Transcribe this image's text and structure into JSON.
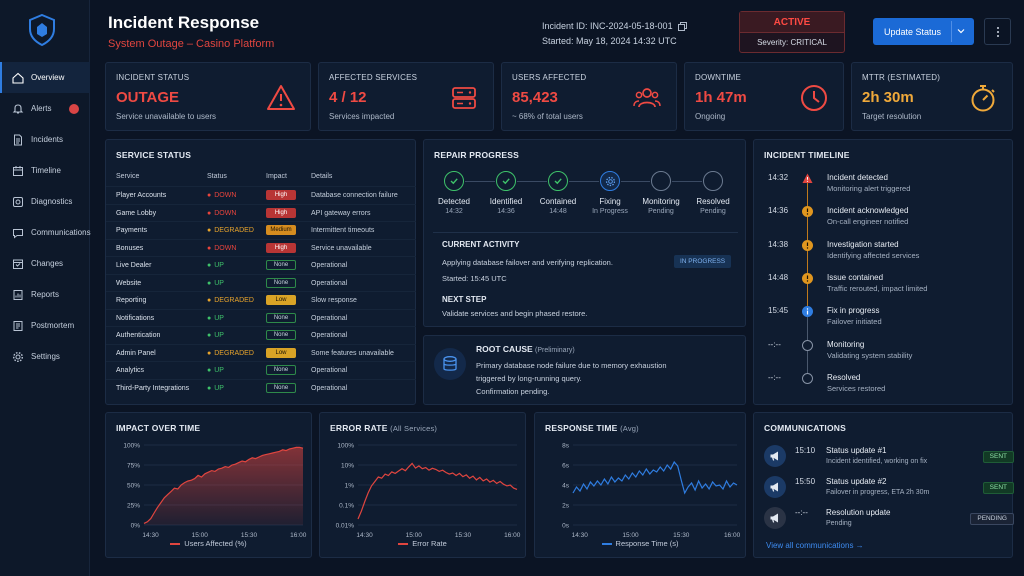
{
  "header": {
    "title": "Incident Response",
    "subtitle": "System Outage – Casino Platform",
    "incident_id": "Incident ID: INC-2024-05-18-001",
    "started": "Started: May 18, 2024  14:32 UTC",
    "status": "ACTIVE",
    "severity": "Severity: CRITICAL",
    "update_button": "Update Status"
  },
  "sidebar": {
    "items": [
      {
        "label": "Overview",
        "icon": "home-icon"
      },
      {
        "label": "Alerts",
        "icon": "bell-icon"
      },
      {
        "label": "Incidents",
        "icon": "document-icon"
      },
      {
        "label": "Timeline",
        "icon": "calendar-icon"
      },
      {
        "label": "Diagnostics",
        "icon": "diagnostics-icon"
      },
      {
        "label": "Communications",
        "icon": "chat-icon"
      },
      {
        "label": "Changes",
        "icon": "changes-icon"
      },
      {
        "label": "Reports",
        "icon": "report-icon"
      },
      {
        "label": "Postmortem",
        "icon": "postmortem-icon"
      },
      {
        "label": "Settings",
        "icon": "gear-icon"
      }
    ]
  },
  "kpis": [
    {
      "label": "INCIDENT STATUS",
      "value": "OUTAGE",
      "sub": "Service unavailable to users",
      "color": "#ef4a43",
      "icon": "warning-icon"
    },
    {
      "label": "AFFECTED SERVICES",
      "value": "4 / 12",
      "sub": "Services impacted",
      "color": "#ef4a43",
      "icon": "server-icon"
    },
    {
      "label": "USERS AFFECTED",
      "value": "85,423",
      "sub": "~ 68% of total users",
      "color": "#ef4a43",
      "icon": "users-icon"
    },
    {
      "label": "DOWNTIME",
      "value": "1h 47m",
      "sub": "Ongoing",
      "color": "#ef4a43",
      "icon": "clock-icon"
    },
    {
      "label": "MTTR (ESTIMATED)",
      "value": "2h 30m",
      "sub": "Target resolution",
      "color": "#f0a93a",
      "icon": "stopwatch-icon"
    }
  ],
  "service_status": {
    "title": "SERVICE STATUS",
    "columns": [
      "Service",
      "Status",
      "Impact",
      "Details"
    ],
    "rows": [
      {
        "service": "Player Accounts",
        "status": "DOWN",
        "impact": "High",
        "details": "Database connection failure"
      },
      {
        "service": "Game Lobby",
        "status": "DOWN",
        "impact": "High",
        "details": "API gateway errors"
      },
      {
        "service": "Payments",
        "status": "DEGRADED",
        "impact": "Medium",
        "details": "Intermittent timeouts"
      },
      {
        "service": "Bonuses",
        "status": "DOWN",
        "impact": "High",
        "details": "Service unavailable"
      },
      {
        "service": "Live Dealer",
        "status": "UP",
        "impact": "None",
        "details": "Operational"
      },
      {
        "service": "Website",
        "status": "UP",
        "impact": "None",
        "details": "Operational"
      },
      {
        "service": "Reporting",
        "status": "DEGRADED",
        "impact": "Low",
        "details": "Slow response"
      },
      {
        "service": "Notifications",
        "status": "UP",
        "impact": "None",
        "details": "Operational"
      },
      {
        "service": "Authentication",
        "status": "UP",
        "impact": "None",
        "details": "Operational"
      },
      {
        "service": "Admin Panel",
        "status": "DEGRADED",
        "impact": "Low",
        "details": "Some features unavailable"
      },
      {
        "service": "Analytics",
        "status": "UP",
        "impact": "None",
        "details": "Operational"
      },
      {
        "service": "Third-Party Integrations",
        "status": "UP",
        "impact": "None",
        "details": "Operational"
      }
    ]
  },
  "repair": {
    "title": "REPAIR PROGRESS",
    "steps": [
      {
        "name": "Detected",
        "time": "14:32",
        "state": "done"
      },
      {
        "name": "Identified",
        "time": "14:36",
        "state": "done"
      },
      {
        "name": "Contained",
        "time": "14:48",
        "state": "done"
      },
      {
        "name": "Fixing",
        "time": "In Progress",
        "state": "current"
      },
      {
        "name": "Monitoring",
        "time": "Pending",
        "state": "pending"
      },
      {
        "name": "Resolved",
        "time": "Pending",
        "state": "pending"
      }
    ],
    "current_title": "CURRENT ACTIVITY",
    "current_text": "Applying database failover and verifying replication.",
    "current_started": "Started: 15:45 UTC",
    "current_badge": "IN PROGRESS",
    "next_title": "NEXT STEP",
    "next_text": "Validate services and begin phased restore."
  },
  "root_cause": {
    "title": "ROOT CAUSE",
    "qualifier": "(Preliminary)",
    "line1": "Primary database node failure due to memory exhaustion",
    "line2": "triggered by long-running query.",
    "line3": "Confirmation pending."
  },
  "timeline": {
    "title": "INCIDENT TIMELINE",
    "events": [
      {
        "time": "14:32",
        "title": "Incident detected",
        "sub": "Monitoring alert triggered",
        "kind": "alert"
      },
      {
        "time": "14:36",
        "title": "Incident acknowledged",
        "sub": "On-call engineer notified",
        "kind": "warn"
      },
      {
        "time": "14:38",
        "title": "Investigation started",
        "sub": "Identifying affected services",
        "kind": "warn"
      },
      {
        "time": "14:48",
        "title": "Issue contained",
        "sub": "Traffic rerouted, impact limited",
        "kind": "warn"
      },
      {
        "time": "15:45",
        "title": "Fix in progress",
        "sub": "Failover initiated",
        "kind": "info"
      },
      {
        "time": "--:--",
        "title": "Monitoring",
        "sub": "Validating system stability",
        "kind": "pending"
      },
      {
        "time": "--:--",
        "title": "Resolved",
        "sub": "Services restored",
        "kind": "pending"
      }
    ]
  },
  "communications": {
    "title": "COMMUNICATIONS",
    "items": [
      {
        "time": "15:10",
        "title": "Status update #1",
        "sub": "Incident identified, working on fix",
        "badge": "SENT"
      },
      {
        "time": "15:50",
        "title": "Status update #2",
        "sub": "Failover in progress, ETA 2h 30m",
        "badge": "SENT"
      },
      {
        "time": "--:--",
        "title": "Resolution update",
        "sub": "Pending",
        "badge": "PENDING"
      }
    ],
    "link": "View all communications →"
  },
  "chart_data": [
    {
      "type": "area",
      "title": "IMPACT OVER TIME",
      "subtitle": "",
      "series": [
        {
          "name": "Users Affected (%)",
          "color": "#e0453f"
        }
      ],
      "x_ticks": [
        "14:30",
        "15:00",
        "15:30",
        "16:00"
      ],
      "y_ticks": [
        "0%",
        "25%",
        "50%",
        "75%",
        "100%"
      ],
      "ylim": [
        0,
        100
      ],
      "x": [
        0,
        2,
        4,
        6,
        8,
        10,
        12,
        14,
        16,
        18,
        20,
        22,
        24,
        26,
        28,
        30,
        32,
        34,
        36,
        38,
        40,
        42,
        44,
        46,
        48,
        50,
        52,
        54,
        56,
        58,
        60,
        62,
        64,
        66,
        68,
        70,
        72,
        74,
        76,
        78,
        80,
        82,
        84,
        86,
        88,
        90,
        92,
        94
      ],
      "values": [
        2,
        4,
        8,
        15,
        22,
        28,
        34,
        38,
        42,
        46,
        45,
        50,
        53,
        55,
        56,
        58,
        62,
        60,
        64,
        66,
        68,
        67,
        70,
        71,
        73,
        72,
        75,
        76,
        78,
        80,
        79,
        82,
        84,
        83,
        85,
        87,
        88,
        89,
        90,
        91,
        92,
        94,
        93,
        95,
        96,
        97,
        97,
        96
      ]
    },
    {
      "type": "line",
      "title": "ERROR RATE",
      "subtitle": "(All Services)",
      "series": [
        {
          "name": "Error Rate",
          "color": "#e0453f"
        }
      ],
      "x_ticks": [
        "14:30",
        "15:00",
        "15:30",
        "16:00"
      ],
      "y_ticks": [
        "0.01%",
        "0.1%",
        "1%",
        "10%",
        "100%"
      ],
      "scale": "log",
      "ylim": [
        0.01,
        100
      ],
      "x": [
        0,
        2,
        4,
        6,
        8,
        10,
        12,
        14,
        16,
        18,
        20,
        22,
        24,
        26,
        28,
        30,
        32,
        34,
        36,
        38,
        40,
        42,
        44,
        46,
        48,
        50,
        52,
        54,
        56,
        58,
        60,
        62,
        64,
        66,
        68,
        70,
        72,
        74,
        76,
        78,
        80,
        82,
        84,
        86,
        88,
        90,
        92,
        94
      ],
      "values": [
        0.02,
        0.05,
        0.15,
        0.4,
        0.9,
        1.5,
        2.5,
        2.2,
        3.5,
        3,
        4.5,
        3.8,
        5,
        6.5,
        5.2,
        8,
        12,
        7,
        9,
        6.5,
        7.5,
        5.5,
        6.8,
        6,
        4.8,
        5.5,
        4.2,
        3.5,
        4,
        3,
        3.8,
        2.6,
        3.2,
        2.2,
        2.8,
        1.8,
        2.4,
        1.6,
        2,
        1.4,
        1.7,
        1.2,
        1.5,
        1.1,
        0.9,
        1,
        0.7,
        0.6
      ]
    },
    {
      "type": "line",
      "title": "RESPONSE TIME",
      "subtitle": "(Avg)",
      "series": [
        {
          "name": "Response Time (s)",
          "color": "#2f7de1"
        }
      ],
      "x_ticks": [
        "14:30",
        "15:00",
        "15:30",
        "16:00"
      ],
      "y_ticks": [
        "0s",
        "2s",
        "4s",
        "6s",
        "8s"
      ],
      "ylim": [
        0,
        8
      ],
      "x": [
        0,
        2,
        4,
        6,
        8,
        10,
        12,
        14,
        16,
        18,
        20,
        22,
        24,
        26,
        28,
        30,
        32,
        34,
        36,
        38,
        40,
        42,
        44,
        46,
        48,
        50,
        52,
        54,
        56,
        58,
        60,
        62,
        64,
        66,
        68,
        70,
        72,
        74,
        76,
        78,
        80,
        82,
        84,
        86,
        88,
        90,
        92,
        94
      ],
      "values": [
        3.2,
        3.8,
        3.4,
        4.1,
        3.6,
        4.3,
        3.9,
        4.4,
        4.0,
        4.6,
        4.1,
        4.8,
        4.3,
        4.7,
        4.4,
        5.0,
        4.6,
        5.2,
        4.8,
        5.4,
        5.0,
        5.6,
        5.1,
        5.5,
        5.3,
        5.8,
        5.4,
        6.0,
        5.6,
        6.3,
        5.9,
        4.5,
        3.2,
        3.8,
        4.2,
        3.5,
        4.4,
        3.7,
        4.1,
        3.6,
        4.3,
        3.9,
        4.0,
        3.6,
        4.4,
        3.8,
        4.2,
        4.0
      ]
    }
  ]
}
